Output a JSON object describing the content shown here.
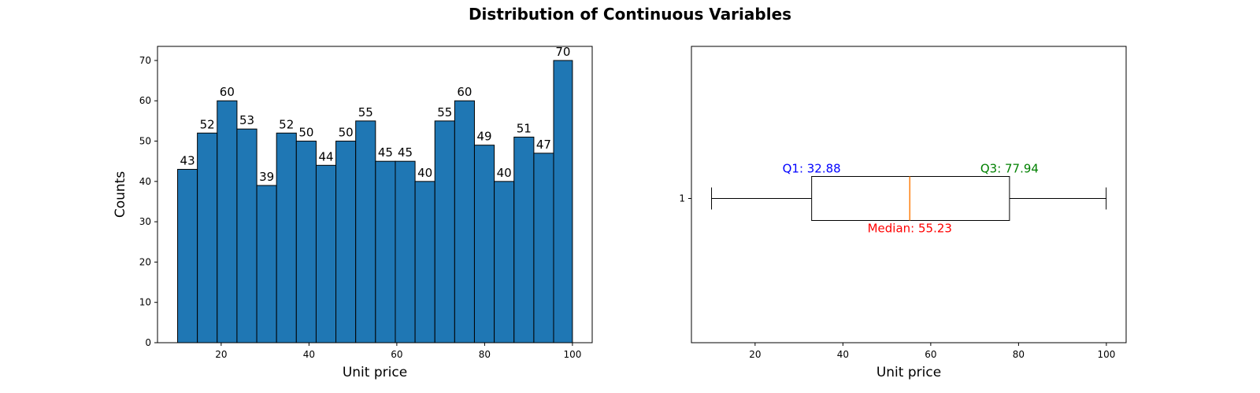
{
  "figure": {
    "title": "Distribution of Continuous Variables"
  },
  "chart_data": [
    {
      "type": "bar",
      "subtype": "histogram",
      "title": "",
      "xlabel": "Unit price",
      "ylabel": "Counts",
      "xlim": [
        5.5,
        104.5
      ],
      "ylim": [
        0,
        73.5
      ],
      "xticks": [
        20,
        40,
        60,
        80,
        100
      ],
      "yticks": [
        0,
        10,
        20,
        30,
        40,
        50,
        60,
        70
      ],
      "bin_edges": [
        10.08,
        14.58,
        19.09,
        23.6,
        28.11,
        32.61,
        37.12,
        41.63,
        46.13,
        50.64,
        55.15,
        59.66,
        64.16,
        68.67,
        73.18,
        77.68,
        82.19,
        86.7,
        91.21,
        95.71,
        100.0
      ],
      "values": [
        43,
        52,
        60,
        53,
        39,
        52,
        50,
        44,
        50,
        55,
        45,
        45,
        40,
        55,
        60,
        49,
        40,
        51,
        47,
        70
      ],
      "bar_color": "#1f77b4",
      "edge_color": "#000000",
      "grid": false
    },
    {
      "type": "boxplot",
      "orientation": "horizontal",
      "title": "",
      "xlabel": "Unit price",
      "ylabel": "",
      "xlim": [
        5.5,
        104.5
      ],
      "xticks": [
        20,
        40,
        60,
        80,
        100
      ],
      "ytick_labels": [
        "1"
      ],
      "stats": {
        "min": 10.08,
        "q1": 32.88,
        "median": 55.23,
        "q3": 77.94,
        "max": 99.96
      },
      "annotations": {
        "q1": "Q1: 32.88",
        "median": "Median: 55.23",
        "q3": "Q3: 77.94"
      },
      "colors": {
        "median_line": "#ff7f0e",
        "q1_text": "#0000ff",
        "median_text": "#ff0000",
        "q3_text": "#008000"
      },
      "grid": false
    }
  ]
}
